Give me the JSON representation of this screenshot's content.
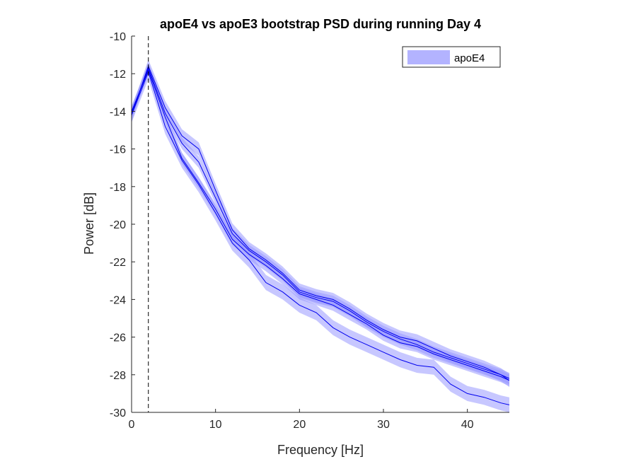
{
  "chart_data": {
    "type": "line",
    "title": "apoE4 vs apoE3 bootstrap PSD during running Day 4",
    "xlabel": "Frequency [Hz]",
    "ylabel": "Power [dB]",
    "xlim": [
      0,
      45
    ],
    "ylim": [
      -30,
      -10
    ],
    "xticks": [
      0,
      10,
      20,
      30,
      40
    ],
    "yticks": [
      -10,
      -12,
      -14,
      -16,
      -18,
      -20,
      -22,
      -24,
      -26,
      -28,
      -30
    ],
    "grid": false,
    "legend": {
      "position": "top-right",
      "entries": [
        "apoE4"
      ]
    },
    "marker_line": {
      "x": 2,
      "style": "dashed",
      "color": "#000000"
    },
    "colors": {
      "line": "#0000ee",
      "band": "#9999ff"
    },
    "x": [
      0,
      2,
      4,
      6,
      8,
      10,
      12,
      14,
      16,
      18,
      20,
      22,
      24,
      26,
      28,
      30,
      32,
      34,
      36,
      38,
      40,
      42,
      44,
      45
    ],
    "series": [
      {
        "values": [
          -14.2,
          -11.6,
          -13.8,
          -15.3,
          -16.0,
          -18.2,
          -20.3,
          -21.3,
          -21.9,
          -22.6,
          -23.5,
          -23.8,
          -24.0,
          -24.5,
          -25.1,
          -25.6,
          -26.0,
          -26.2,
          -26.6,
          -27.0,
          -27.3,
          -27.6,
          -28.0,
          -28.3
        ],
        "band": 0.35
      },
      {
        "values": [
          -14.0,
          -11.8,
          -14.3,
          -16.5,
          -17.8,
          -19.2,
          -20.8,
          -21.6,
          -22.2,
          -22.9,
          -23.7,
          -24.0,
          -24.3,
          -24.8,
          -25.3,
          -25.9,
          -26.3,
          -26.5,
          -26.9,
          -27.2,
          -27.5,
          -27.8,
          -28.1,
          -28.3
        ],
        "band": 0.3
      },
      {
        "values": [
          -14.1,
          -11.7,
          -14.1,
          -15.7,
          -16.7,
          -18.6,
          -20.5,
          -21.4,
          -22.0,
          -22.7,
          -23.6,
          -23.9,
          -24.1,
          -24.6,
          -25.2,
          -25.7,
          -26.1,
          -26.4,
          -26.8,
          -27.1,
          -27.4,
          -27.7,
          -28.0,
          -28.2
        ],
        "band": 0.3
      },
      {
        "values": [
          -14.2,
          -11.9,
          -14.8,
          -16.6,
          -17.9,
          -19.4,
          -21.0,
          -21.9,
          -23.1,
          -23.6,
          -24.3,
          -24.7,
          -25.5,
          -26.0,
          -26.4,
          -26.8,
          -27.2,
          -27.5,
          -27.6,
          -28.5,
          -29.0,
          -29.2,
          -29.5,
          -29.6
        ],
        "band": 0.4
      }
    ]
  }
}
